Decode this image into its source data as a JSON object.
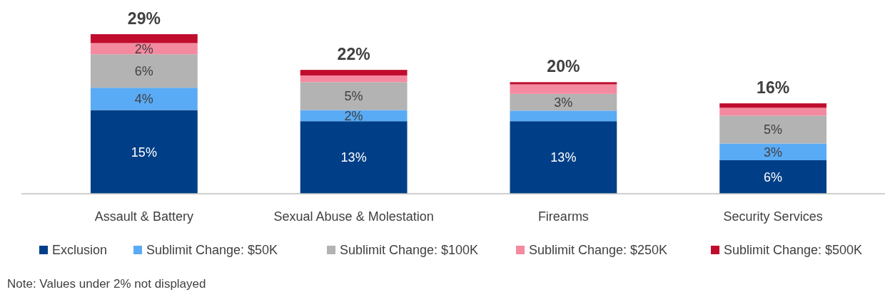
{
  "chart_data": {
    "type": "bar",
    "stacked": true,
    "categories": [
      "Assault & Battery",
      "Sexual Abuse & Molestation",
      "Firearms",
      "Security Services"
    ],
    "series": [
      {
        "name": "Exclusion",
        "color": "#003f87",
        "values": [
          15,
          13,
          13,
          6
        ],
        "value_labels": [
          "15%",
          "13%",
          "13%",
          "6%"
        ]
      },
      {
        "name": "Sublimit Change: $50K",
        "color": "#5aabf5",
        "values": [
          4,
          2,
          1.9,
          3
        ],
        "value_labels": [
          "4%",
          "2%",
          null,
          "3%"
        ]
      },
      {
        "name": "Sublimit Change: $100K",
        "color": "#b3b3b3",
        "values": [
          6,
          5,
          3,
          5
        ],
        "value_labels": [
          "6%",
          "5%",
          "3%",
          "5%"
        ]
      },
      {
        "name": "Sublimit Change: $250K",
        "color": "#f48aa0",
        "values": [
          2,
          1.2,
          1.7,
          1.4
        ],
        "value_labels": [
          "2%",
          null,
          null,
          null
        ]
      },
      {
        "name": "Sublimit Change: $500K",
        "color": "#c00d2e",
        "values": [
          1.6,
          1,
          0.4,
          0.8
        ],
        "value_labels": [
          null,
          null,
          null,
          null
        ]
      }
    ],
    "totals": [
      "29%",
      "22%",
      "20%",
      "16%"
    ],
    "legend": "bottom",
    "annotations": [
      "Note: Values under 2% not displayed"
    ]
  }
}
